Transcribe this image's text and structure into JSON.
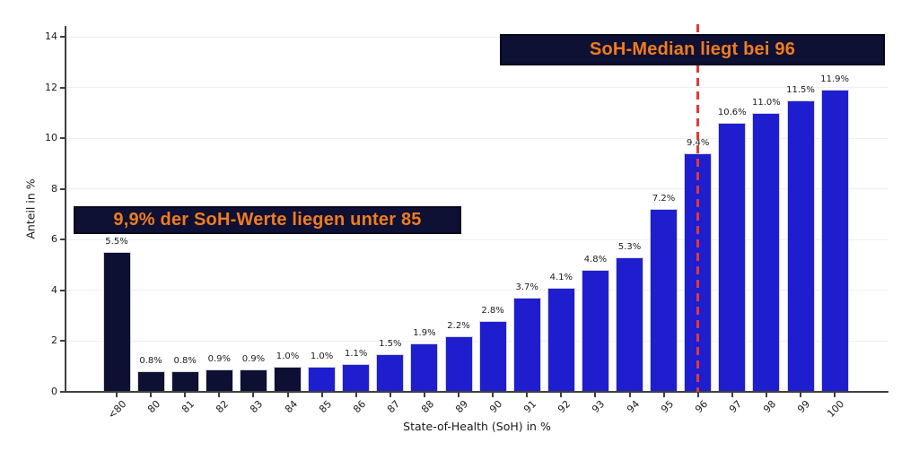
{
  "chart_data": {
    "type": "bar",
    "title": "",
    "xlabel": "State-of-Health (SoH) in %",
    "ylabel": "Anteil in %",
    "categories": [
      "<80",
      "80",
      "81",
      "82",
      "83",
      "84",
      "85",
      "86",
      "87",
      "88",
      "89",
      "90",
      "91",
      "92",
      "93",
      "94",
      "95",
      "96",
      "97",
      "98",
      "99",
      "100"
    ],
    "values": [
      5.5,
      0.8,
      0.8,
      0.9,
      0.9,
      1.0,
      1.0,
      1.1,
      1.5,
      1.9,
      2.2,
      2.8,
      3.7,
      4.1,
      4.8,
      5.3,
      7.2,
      9.4,
      10.6,
      11.0,
      11.5,
      11.9
    ],
    "value_label_suffix": "%",
    "ylim": [
      0,
      14
    ],
    "yticks": [
      0,
      2,
      4,
      6,
      8,
      10,
      12,
      14
    ],
    "grid": true,
    "legend": "none",
    "dark_bar_count": 6,
    "median_line": {
      "category": "96",
      "style": "dashed"
    },
    "colors": {
      "bar_below_85": "#0d1033",
      "bar_85_and_above": "#1e1ecf",
      "median_line": "#e23838",
      "annotation_bg": "#0e1034",
      "annotation_text": "#f07c1e"
    },
    "annotations": [
      {
        "id": "under-85",
        "text": "9,9% der SoH-Werte liegen unter 85"
      },
      {
        "id": "median",
        "text": "SoH-Median liegt bei 96"
      }
    ]
  }
}
